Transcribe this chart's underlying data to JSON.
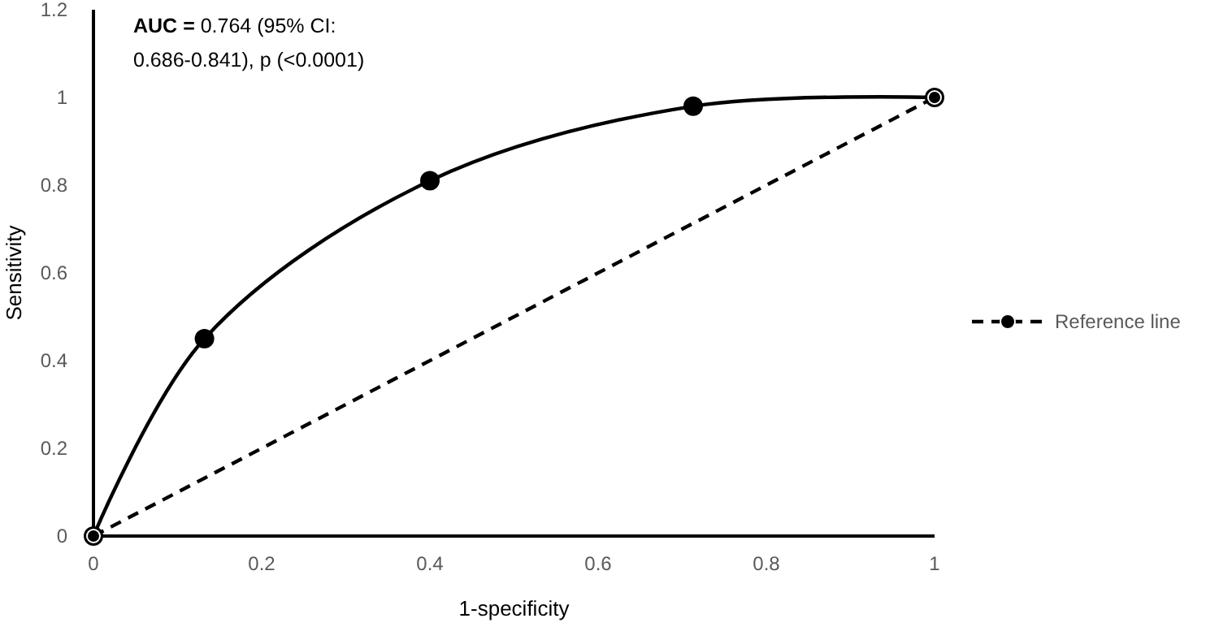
{
  "chart_data": {
    "type": "line",
    "xlabel": "1-specificity",
    "ylabel": "Sensitivity",
    "annotations": [
      "AUC = 0.764 (95% CI: 0.686-0.841), p (<0.0001)"
    ],
    "xlim": [
      0,
      1
    ],
    "xticks": [
      0,
      0.2,
      0.4,
      0.6,
      0.8,
      1
    ],
    "ylim": [
      0,
      1.2
    ],
    "yticks": [
      0,
      0.2,
      0.4,
      0.6,
      0.8,
      1,
      1.2
    ],
    "grid": false,
    "legend": "right",
    "series": [
      {
        "color": "#000000",
        "x": [
          0,
          0.132,
          0.4,
          0.713,
          1
        ],
        "values": [
          0,
          0.45,
          0.81,
          0.98,
          1
        ],
        "marker": "circle",
        "line_style": "solid"
      },
      {
        "name": "Reference line",
        "color": "#000000",
        "x": [
          0,
          1
        ],
        "values": [
          0,
          1
        ],
        "marker": "circle",
        "line_style": "dashed"
      }
    ]
  }
}
